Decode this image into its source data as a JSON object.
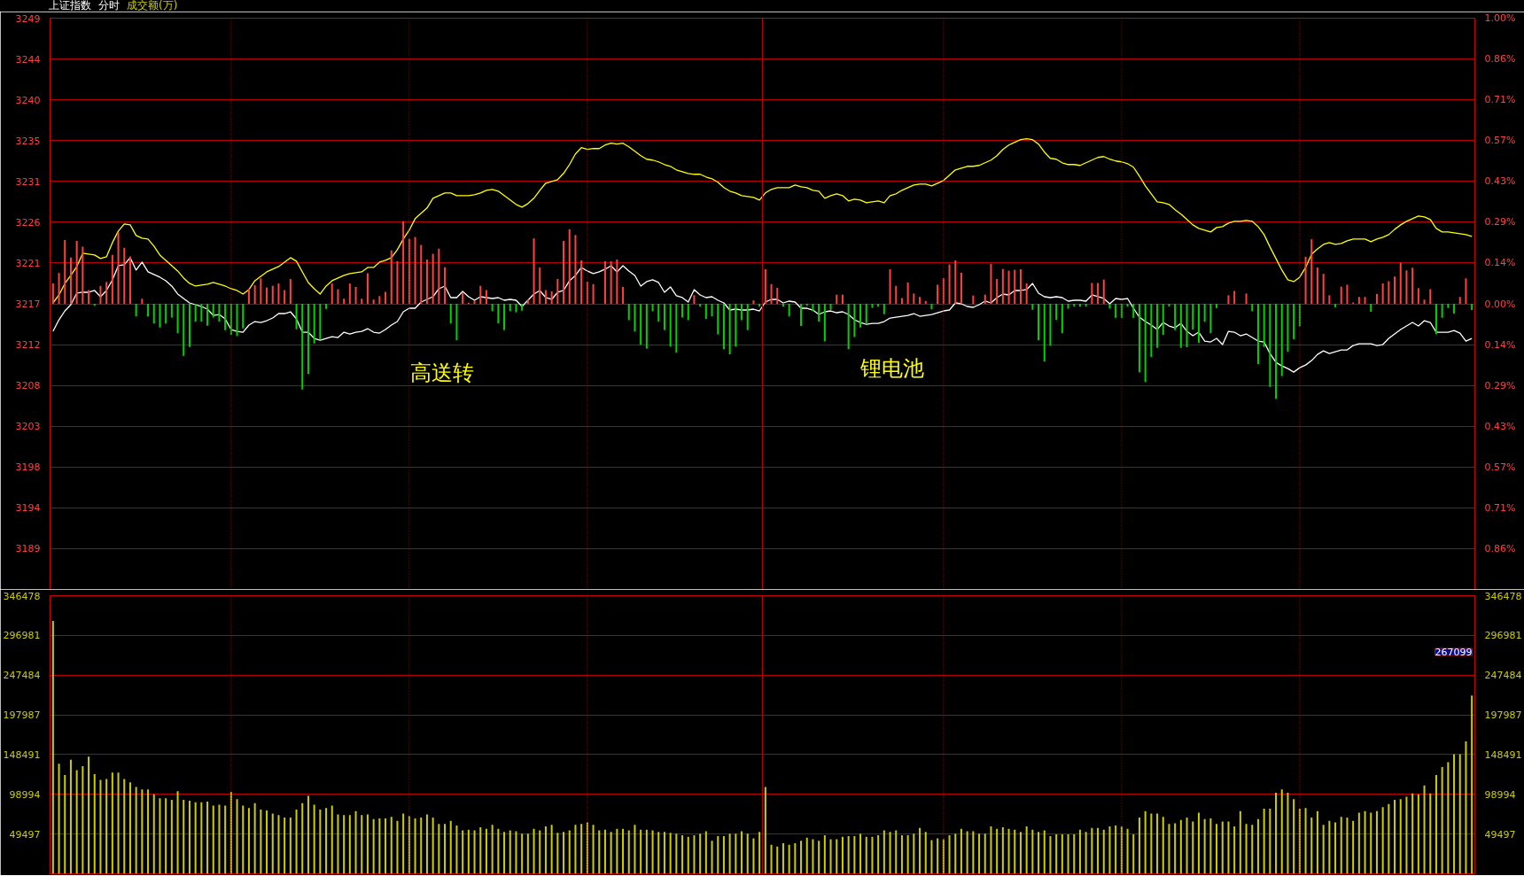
{
  "chart_data": [
    {
      "type": "line",
      "title": "上证指数",
      "subtitle": "分时",
      "categories": [
        null,
        null,
        null,
        null,
        null,
        null,
        null,
        null,
        null,
        null,
        null,
        null,
        null,
        null,
        null,
        null,
        null,
        null,
        null,
        null,
        null,
        null,
        null,
        null,
        null,
        null,
        null,
        null,
        null,
        null,
        null,
        null,
        null,
        null,
        null,
        null,
        null,
        null,
        null,
        null,
        null,
        null,
        null,
        null,
        null,
        null,
        null,
        null,
        null,
        null,
        null,
        null,
        null,
        null,
        null,
        null,
        null,
        null,
        null,
        null,
        null,
        null,
        null,
        null,
        null,
        null,
        null,
        null,
        null,
        null,
        null,
        null,
        null,
        null,
        null,
        null,
        null,
        null,
        null,
        null,
        null,
        null,
        null,
        null,
        null,
        null,
        null,
        null,
        null,
        null,
        null,
        null,
        null,
        null,
        null,
        null,
        null,
        null,
        null,
        null,
        null,
        null,
        null,
        null,
        null,
        null,
        null,
        null,
        null,
        null,
        null,
        null,
        null,
        null,
        null,
        null,
        null,
        null,
        null,
        null,
        null,
        null,
        null,
        null,
        null,
        null,
        null,
        null,
        null,
        null,
        null,
        null,
        null,
        null,
        null,
        null,
        null,
        null,
        null,
        null,
        null,
        null,
        null,
        null,
        null,
        null,
        null,
        null,
        null,
        null,
        null,
        null,
        null,
        null,
        null,
        null,
        null,
        null,
        null,
        null,
        null,
        null,
        null,
        null,
        null,
        null,
        null,
        null,
        null,
        null,
        null,
        null,
        null,
        null,
        null,
        null,
        null,
        null,
        null,
        null,
        null,
        null,
        null,
        null,
        null,
        null,
        null,
        null,
        null,
        null,
        null,
        null,
        null,
        null,
        null,
        null,
        null,
        null,
        null,
        null,
        null,
        null,
        null,
        null,
        null,
        null,
        null,
        null,
        null,
        null,
        null,
        null,
        null,
        null,
        null,
        null,
        null,
        null,
        null,
        null,
        null,
        null,
        null,
        null,
        null,
        null,
        null,
        null,
        null,
        null,
        null,
        null,
        null,
        null,
        null,
        null,
        null,
        null,
        null,
        null
      ],
      "series": [
        {
          "color": "#ffff00",
          "values": [
            3216.9,
            3217.8,
            3219.1,
            3220.0,
            3221.0,
            3222.5,
            3222.4,
            3222.3,
            3221.9,
            3222.1,
            3223.7,
            3225.0,
            3225.8,
            3225.7,
            3224.5,
            3224.2,
            3224.1,
            3223.3,
            3222.3,
            3221.7,
            3221.1,
            3220.5,
            3219.7,
            3219.1,
            3218.8,
            3218.9,
            3219.0,
            3219.2,
            3219.0,
            3218.8,
            3218.5,
            3218.3,
            3217.9,
            3218.4,
            3219.4,
            3219.9,
            3220.4,
            3220.7,
            3221.0,
            3221.5,
            3222.0,
            3221.6,
            3220.4,
            3219.2,
            3218.5,
            3217.9,
            3218.8,
            3219.4,
            3219.7,
            3220.0,
            3220.2,
            3220.3,
            3220.4,
            3220.9,
            3220.9,
            3221.5,
            3221.7,
            3222.0,
            3222.9,
            3224.1,
            3225.1,
            3226.4,
            3227.0,
            3227.6,
            3228.7,
            3229.0,
            3229.3,
            3229.3,
            3229.0,
            3229.0,
            3229.0,
            3229.1,
            3229.3,
            3229.6,
            3229.7,
            3229.5,
            3229.0,
            3228.5,
            3228.0,
            3227.7,
            3228.1,
            3228.7,
            3229.6,
            3230.4,
            3230.6,
            3230.8,
            3231.5,
            3232.5,
            3233.7,
            3234.4,
            3234.2,
            3234.3,
            3234.3,
            3234.7,
            3234.9,
            3234.8,
            3234.9,
            3234.5,
            3234.0,
            3233.5,
            3233.1,
            3233.0,
            3232.8,
            3232.5,
            3232.3,
            3231.9,
            3231.7,
            3231.5,
            3231.4,
            3231.4,
            3231.1,
            3230.9,
            3230.5,
            3229.9,
            3229.5,
            3229.3,
            3229.0,
            3228.9,
            3228.8,
            3228.5,
            3229.3,
            3229.7,
            3229.9,
            3229.9,
            3229.9,
            3230.2,
            3230.0,
            3229.9,
            3229.6,
            3229.5,
            3228.7,
            3229.0,
            3229.2,
            3229.0,
            3228.4,
            3228.6,
            3228.5,
            3228.2,
            3228.3,
            3228.4,
            3228.2,
            3229.0,
            3229.2,
            3229.6,
            3229.9,
            3230.2,
            3230.3,
            3230.3,
            3230.1,
            3230.4,
            3230.7,
            3231.3,
            3231.9,
            3232.1,
            3232.3,
            3232.3,
            3232.4,
            3232.7,
            3233.0,
            3233.5,
            3234.2,
            3234.7,
            3235.0,
            3235.3,
            3235.4,
            3235.3,
            3234.8,
            3233.9,
            3233.2,
            3233.1,
            3232.7,
            3232.5,
            3232.5,
            3232.4,
            3232.7,
            3233.0,
            3233.3,
            3233.4,
            3233.1,
            3232.9,
            3232.8,
            3232.6,
            3232.2,
            3231.2,
            3230.1,
            3229.2,
            3228.3,
            3228.2,
            3228.0,
            3227.4,
            3226.9,
            3226.3,
            3225.7,
            3225.3,
            3225.1,
            3224.9,
            3225.4,
            3225.5,
            3225.9,
            3226.1,
            3226.1,
            3226.2,
            3226.1,
            3225.5,
            3224.6,
            3223.2,
            3221.9,
            3220.6,
            3219.5,
            3219.3,
            3219.8,
            3220.9,
            3222.4,
            3223.0,
            3223.5,
            3223.7,
            3223.5,
            3223.6,
            3223.9,
            3224.1,
            3224.1,
            3224.1,
            3223.8,
            3224.1,
            3224.3,
            3224.6,
            3225.2,
            3225.7,
            3226.1,
            3226.4,
            3226.7,
            3226.6,
            3226.3,
            3225.3,
            3224.9,
            3224.9,
            3224.8,
            3224.7,
            3224.6,
            3224.4
          ]
        },
        {
          "color": "#ffffff",
          "values": [
            3213.7,
            3215.0,
            3216.0,
            3216.7,
            3218.0,
            3218.1,
            3218.1,
            3218.3,
            3217.6,
            3218.3,
            3219.5,
            3221.1,
            3221.2,
            3222.0,
            3220.6,
            3221.5,
            3220.4,
            3220.1,
            3219.8,
            3219.4,
            3218.8,
            3217.9,
            3217.4,
            3216.9,
            3216.7,
            3216.5,
            3216.2,
            3215.5,
            3215.6,
            3215.1,
            3213.9,
            3213.7,
            3213.6,
            3214.4,
            3214.8,
            3214.7,
            3214.9,
            3215.2,
            3215.7,
            3215.7,
            3215.9,
            3215.1,
            3213.6,
            3213.6,
            3212.9,
            3212.7,
            3212.9,
            3213.1,
            3213.0,
            3213.6,
            3213.4,
            3213.6,
            3213.7,
            3214.0,
            3213.6,
            3213.5,
            3213.9,
            3214.4,
            3214.8,
            3215.9,
            3216.3,
            3216.3,
            3217.0,
            3217.3,
            3217.6,
            3218.5,
            3218.8,
            3217.5,
            3217.5,
            3218.2,
            3217.6,
            3217.2,
            3217.6,
            3217.5,
            3217.4,
            3217.5,
            3217.2,
            3217.3,
            3217.2,
            3216.5,
            3217.2,
            3217.9,
            3218.3,
            3217.5,
            3217.3,
            3218.1,
            3218.3,
            3219.4,
            3220.0,
            3220.9,
            3220.5,
            3220.2,
            3220.4,
            3220.7,
            3221.1,
            3220.4,
            3221.1,
            3220.5,
            3220.0,
            3218.8,
            3219.3,
            3219.5,
            3219.2,
            3218.1,
            3218.7,
            3217.7,
            3217.5,
            3217.0,
            3218.4,
            3217.8,
            3217.5,
            3217.6,
            3217.2,
            3216.9,
            3216.1,
            3216.2,
            3216.1,
            3216.1,
            3216.2,
            3216.0,
            3217.0,
            3217.3,
            3217.3,
            3216.9,
            3217.1,
            3217.0,
            3216.3,
            3216.3,
            3216.1,
            3215.6,
            3215.9,
            3216.0,
            3215.8,
            3215.9,
            3215.6,
            3215.0,
            3214.7,
            3214.5,
            3214.6,
            3214.6,
            3214.8,
            3215.2,
            3215.3,
            3215.4,
            3215.5,
            3215.7,
            3215.4,
            3215.5,
            3215.6,
            3215.8,
            3216.0,
            3216.1,
            3216.9,
            3216.8,
            3216.5,
            3216.4,
            3216.7,
            3217.1,
            3216.9,
            3217.5,
            3217.9,
            3217.8,
            3218.3,
            3218.3,
            3218.4,
            3219.1,
            3218.0,
            3217.6,
            3217.5,
            3217.6,
            3217.5,
            3217.1,
            3217.2,
            3217.2,
            3217.1,
            3217.8,
            3217.6,
            3217.4,
            3216.8,
            3217.4,
            3217.3,
            3217.4,
            3216.3,
            3215.3,
            3214.8,
            3214.4,
            3213.9,
            3214.7,
            3214.3,
            3214.1,
            3214.6,
            3213.7,
            3213.2,
            3213.6,
            3212.6,
            3212.5,
            3212.9,
            3212.2,
            3213.7,
            3213.6,
            3213.2,
            3213.4,
            3213.0,
            3212.6,
            3212.5,
            3211.2,
            3210.2,
            3209.8,
            3209.5,
            3209.1,
            3209.6,
            3209.9,
            3210.4,
            3211.1,
            3211.5,
            3211.2,
            3211.4,
            3211.6,
            3211.6,
            3212.1,
            3212.3,
            3212.3,
            3212.3,
            3212.1,
            3212.2,
            3212.9,
            3213.4,
            3213.9,
            3214.3,
            3214.7,
            3214.3,
            3214.9,
            3214.7,
            3213.6,
            3213.6,
            3213.6,
            3213.8,
            3213.5,
            3212.6,
            3212.9
          ]
        },
        {
          "type": "bar",
          "axis": "y2",
          "color": "#ff4040",
          "values": [
            0.071,
            0.108,
            0.223,
            0.162,
            0.22,
            0.2,
            0.048,
            null,
            0.063,
            0.077,
            0.171,
            0.25,
            0.196,
            0.166,
            null,
            0.018,
            null,
            null,
            null,
            null,
            null,
            null,
            null,
            null,
            null,
            null,
            null,
            null,
            null,
            null,
            null,
            null,
            null,
            0.053,
            0.065,
            0.089,
            0.057,
            0.063,
            0.071,
            0.048,
            0.087,
            null,
            null,
            null,
            null,
            null,
            null,
            0.071,
            0.051,
            0.018,
            0.071,
            0.059,
            0.018,
            0.107,
            0.015,
            0.027,
            0.042,
            0.187,
            0.149,
            0.289,
            0.228,
            0.234,
            0.206,
            0.155,
            0.175,
            0.193,
            0.128,
            null,
            null,
            0.039,
            0.004,
            0.01,
            0.063,
            0.048,
            null,
            null,
            null,
            null,
            null,
            null,
            0.015,
            0.229,
            0.127,
            0.048,
            0.044,
            0.087,
            0.22,
            0.261,
            0.241,
            0.152,
            0.077,
            0.069,
            null,
            0.149,
            0.149,
            0.155,
            0.059,
            null,
            null,
            null,
            null,
            null,
            null,
            null,
            null,
            null,
            null,
            null,
            0.03,
            null,
            null,
            null,
            null,
            null,
            null,
            null,
            null,
            null,
            0.012,
            null,
            0.121,
            0.069,
            0.056,
            null,
            null,
            null,
            null,
            null,
            null,
            null,
            null,
            null,
            0.032,
            0.032,
            null,
            null,
            null,
            null,
            null,
            null,
            null,
            0.121,
            0.063,
            0.02,
            0.075,
            0.036,
            0.024,
            0.01,
            null,
            0.067,
            0.09,
            0.138,
            0.152,
            0.109,
            null,
            0.029,
            null,
            0.032,
            0.14,
            0.087,
            0.122,
            0.116,
            0.119,
            0.121,
            0.072,
            null,
            null,
            null,
            null,
            null,
            null,
            null,
            null,
            null,
            null,
            0.073,
            0.073,
            0.085,
            null,
            null,
            null,
            null,
            null,
            null,
            null,
            null,
            null,
            null,
            null,
            null,
            null,
            null,
            null,
            null,
            null,
            null,
            null,
            null,
            0.03,
            0.045,
            null,
            0.036,
            null,
            null,
            null,
            null,
            null,
            null,
            null,
            null,
            null,
            0.165,
            0.226,
            0.127,
            0.105,
            0.03,
            null,
            0.06,
            0.067,
            0.005,
            0.024,
            0.024,
            null,
            0.035,
            0.071,
            0.079,
            0.095,
            0.144,
            0.117,
            0.126,
            0.055,
            0.015,
            0.051,
            null,
            null,
            null,
            null,
            0.024,
            0.089,
            null
          ]
        },
        {
          "type": "bar",
          "axis": "y2",
          "color": "#00d200",
          "values": [
            null,
            null,
            null,
            null,
            null,
            null,
            null,
            -0.006,
            null,
            null,
            null,
            null,
            null,
            null,
            -0.044,
            null,
            -0.044,
            -0.069,
            -0.083,
            -0.069,
            -0.048,
            -0.103,
            -0.182,
            -0.151,
            -0.062,
            -0.062,
            -0.077,
            -0.048,
            -0.062,
            -0.092,
            -0.109,
            -0.113,
            -0.086,
            null,
            null,
            null,
            null,
            null,
            null,
            null,
            null,
            -0.089,
            -0.3,
            -0.246,
            -0.139,
            -0.125,
            -0.018,
            null,
            null,
            null,
            null,
            null,
            null,
            null,
            null,
            null,
            null,
            null,
            null,
            null,
            null,
            null,
            null,
            null,
            null,
            null,
            null,
            -0.069,
            -0.128,
            null,
            null,
            null,
            null,
            null,
            -0.026,
            -0.068,
            -0.092,
            -0.026,
            -0.03,
            -0.024,
            null,
            null,
            null,
            null,
            null,
            null,
            null,
            null,
            null,
            null,
            null,
            null,
            null,
            null,
            null,
            null,
            null,
            -0.057,
            -0.097,
            -0.143,
            -0.157,
            -0.026,
            -0.062,
            -0.092,
            -0.15,
            -0.171,
            -0.048,
            -0.057,
            null,
            -0.01,
            -0.053,
            -0.044,
            -0.107,
            -0.159,
            -0.177,
            -0.15,
            -0.057,
            -0.092,
            null,
            -0.01,
            null,
            null,
            null,
            -0.01,
            -0.044,
            null,
            -0.078,
            -0.006,
            -0.026,
            -0.062,
            -0.131,
            -0.021,
            null,
            null,
            -0.159,
            -0.116,
            -0.083,
            -0.071,
            -0.014,
            -0.01,
            -0.036,
            null,
            null,
            null,
            null,
            null,
            null,
            null,
            -0.019,
            null,
            null,
            null,
            null,
            null,
            null,
            null,
            null,
            null,
            null,
            null,
            null,
            null,
            null,
            null,
            null,
            -0.021,
            -0.128,
            -0.202,
            -0.147,
            -0.056,
            -0.103,
            -0.017,
            -0.01,
            -0.01,
            -0.01,
            null,
            null,
            null,
            -0.017,
            -0.049,
            -0.049,
            -0.01,
            -0.049,
            -0.24,
            -0.274,
            -0.186,
            -0.154,
            -0.109,
            -0.01,
            -0.092,
            -0.154,
            -0.152,
            -0.09,
            -0.136,
            -0.063,
            -0.103,
            -0.015,
            null,
            null,
            null,
            null,
            null,
            -0.026,
            -0.211,
            -0.151,
            -0.291,
            -0.333,
            -0.253,
            -0.168,
            -0.124,
            -0.079,
            null,
            null,
            null,
            null,
            null,
            -0.012,
            null,
            null,
            null,
            null,
            null,
            -0.028,
            null,
            null,
            null,
            null,
            null,
            null,
            null,
            null,
            null,
            null,
            -0.106,
            -0.049,
            -0.015,
            -0.034,
            null,
            null,
            -0.022
          ]
        }
      ],
      "ylim": [
        3184.6,
        3249.0
      ],
      "yticks": [
        {
          "value": 3189.2,
          "label": "3189"
        },
        {
          "value": 3193.8,
          "label": "3194"
        },
        {
          "value": 3198.4,
          "label": "3198"
        },
        {
          "value": 3203.0,
          "label": "3203"
        },
        {
          "value": 3207.6,
          "label": "3208"
        },
        {
          "value": 3212.2,
          "label": "3212"
        },
        {
          "value": 3216.8,
          "label": "3217"
        },
        {
          "value": 3221.4,
          "label": "3221"
        },
        {
          "value": 3226.0,
          "label": "3226"
        },
        {
          "value": 3230.6,
          "label": "3231"
        },
        {
          "value": 3235.2,
          "label": "3235"
        },
        {
          "value": 3239.8,
          "label": "3240"
        },
        {
          "value": 3244.4,
          "label": "3244"
        },
        {
          "value": 3249.0,
          "label": "3249"
        }
      ],
      "y2lim": [
        -1.0,
        1.0
      ],
      "y2ticks": [
        {
          "value": -0.857,
          "label": "0.86%"
        },
        {
          "value": -0.714,
          "label": "0.71%"
        },
        {
          "value": -0.571,
          "label": "0.57%"
        },
        {
          "value": -0.429,
          "label": "0.43%"
        },
        {
          "value": -0.286,
          "label": "0.29%"
        },
        {
          "value": -0.143,
          "label": "0.14%"
        },
        {
          "value": 0,
          "label": "0.00%"
        },
        {
          "value": 0.143,
          "label": "0.14%"
        },
        {
          "value": 0.286,
          "label": "0.29%"
        },
        {
          "value": 0.429,
          "label": "0.43%"
        },
        {
          "value": 0.571,
          "label": "0.57%"
        },
        {
          "value": 0.714,
          "label": "0.71%"
        },
        {
          "value": 0.857,
          "label": "0.86%"
        },
        {
          "value": 1.0,
          "label": "1.00%"
        }
      ],
      "annotations": [
        "高送转",
        "锂电池"
      ],
      "grid": true,
      "tick_labels": "y"
    },
    {
      "type": "bar",
      "categories": [
        null,
        null,
        null,
        null,
        null,
        null,
        null,
        null,
        null,
        null,
        null,
        null,
        null,
        null,
        null,
        null,
        null,
        null,
        null,
        null,
        null,
        null,
        null,
        null,
        null,
        null,
        null,
        null,
        null,
        null,
        null,
        null,
        null,
        null,
        null,
        null,
        null,
        null,
        null,
        null,
        null,
        null,
        null,
        null,
        null,
        null,
        null,
        null,
        null,
        null,
        null,
        null,
        null,
        null,
        null,
        null,
        null,
        null,
        null,
        null,
        null,
        null,
        null,
        null,
        null,
        null,
        null,
        null,
        null,
        null,
        null,
        null,
        null,
        null,
        null,
        null,
        null,
        null,
        null,
        null,
        null,
        null,
        null,
        null,
        null,
        null,
        null,
        null,
        null,
        null,
        null,
        null,
        null,
        null,
        null,
        null,
        null,
        null,
        null,
        null,
        null,
        null,
        null,
        null,
        null,
        null,
        null,
        null,
        null,
        null,
        null,
        null,
        null,
        null,
        null,
        null,
        null,
        null,
        null,
        null,
        null,
        null,
        null,
        null,
        null,
        null,
        null,
        null,
        null,
        null,
        null,
        null,
        null,
        null,
        null,
        null,
        null,
        null,
        null,
        null,
        null,
        null,
        null,
        null,
        null,
        null,
        null,
        null,
        null,
        null,
        null,
        null,
        null,
        null,
        null,
        null,
        null,
        null,
        null,
        null,
        null,
        null,
        null,
        null,
        null,
        null,
        null,
        null,
        null,
        null,
        null,
        null,
        null,
        null,
        null,
        null,
        null,
        null,
        null,
        null,
        null,
        null,
        null,
        null,
        null,
        null,
        null,
        null,
        null,
        null,
        null,
        null,
        null,
        null,
        null,
        null,
        null,
        null,
        null,
        null,
        null,
        null,
        null,
        null,
        null,
        null,
        null,
        null,
        null,
        null,
        null,
        null,
        null,
        null,
        null,
        null,
        null,
        null,
        null,
        null,
        null,
        null,
        null,
        null,
        null,
        null,
        null,
        null,
        null,
        null,
        null,
        null,
        null,
        null,
        null,
        null,
        null,
        null,
        null,
        null
      ],
      "series": [
        {
          "name": "成交额(万)",
          "color": "#cccc00",
          "values": [
            315000,
            137000,
            123000,
            142000,
            129000,
            134000,
            146000,
            124000,
            117000,
            118000,
            126000,
            126000,
            118000,
            114000,
            108000,
            105000,
            105000,
            99000,
            94000,
            94000,
            92000,
            103000,
            92000,
            91000,
            89000,
            89000,
            90000,
            85000,
            86000,
            85000,
            102000,
            93000,
            85000,
            82000,
            88000,
            80000,
            79000,
            75000,
            73000,
            70000,
            70000,
            80000,
            88000,
            97000,
            86000,
            80000,
            82000,
            85000,
            74000,
            73000,
            73000,
            78000,
            73000,
            74000,
            68000,
            69000,
            69000,
            71000,
            66000,
            75000,
            72000,
            69000,
            70000,
            74000,
            70000,
            62000,
            62000,
            66000,
            60000,
            54000,
            55000,
            54000,
            58000,
            56000,
            61000,
            56000,
            52000,
            54000,
            53000,
            50000,
            50000,
            56000,
            54000,
            59000,
            61000,
            51000,
            52000,
            54000,
            61000,
            62000,
            64000,
            61000,
            54000,
            55000,
            52000,
            56000,
            56000,
            54000,
            61000,
            55000,
            55000,
            54000,
            52000,
            52000,
            51000,
            50000,
            48000,
            46000,
            48000,
            50000,
            53000,
            41000,
            47000,
            47000,
            50000,
            50000,
            53000,
            50000,
            44000,
            52000,
            108000,
            36000,
            34000,
            38000,
            36000,
            38000,
            41000,
            45000,
            43000,
            41000,
            48000,
            43000,
            43000,
            46000,
            47000,
            47000,
            50000,
            46000,
            46000,
            48000,
            54000,
            52000,
            54000,
            48000,
            48000,
            50000,
            57000,
            52000,
            42000,
            44000,
            43000,
            48000,
            50000,
            56000,
            53000,
            53000,
            50000,
            50000,
            59000,
            56000,
            58000,
            56000,
            55000,
            52000,
            59000,
            55000,
            52000,
            54000,
            47000,
            49000,
            49000,
            49000,
            49000,
            55000,
            52000,
            57000,
            57000,
            55000,
            59000,
            60000,
            59000,
            56000,
            49000,
            70000,
            78000,
            75000,
            75000,
            71000,
            62000,
            63000,
            67000,
            70000,
            65000,
            76000,
            68000,
            69000,
            62000,
            65000,
            65000,
            59000,
            78000,
            62000,
            61000,
            68000,
            81000,
            81000,
            101000,
            105000,
            101000,
            93000,
            81000,
            82000,
            70000,
            78000,
            61000,
            66000,
            64000,
            71000,
            70000,
            66000,
            76000,
            78000,
            76000,
            78000,
            83000,
            87000,
            92000,
            93000,
            96000,
            100000,
            99000,
            110000,
            100000,
            123000,
            133000,
            139000,
            149000,
            149000,
            165000,
            222000
          ]
        }
      ],
      "ylim": [
        0,
        346478
      ],
      "yticks": [
        49497,
        98994,
        148491,
        197987,
        247484,
        296981,
        346478
      ],
      "y2lim": [
        0,
        346478
      ],
      "y2ticks": [
        49497,
        98994,
        148491,
        197987,
        247484,
        296981,
        346478
      ],
      "annotations": [
        "267099"
      ],
      "grid": true,
      "tick_labels": "y"
    }
  ]
}
